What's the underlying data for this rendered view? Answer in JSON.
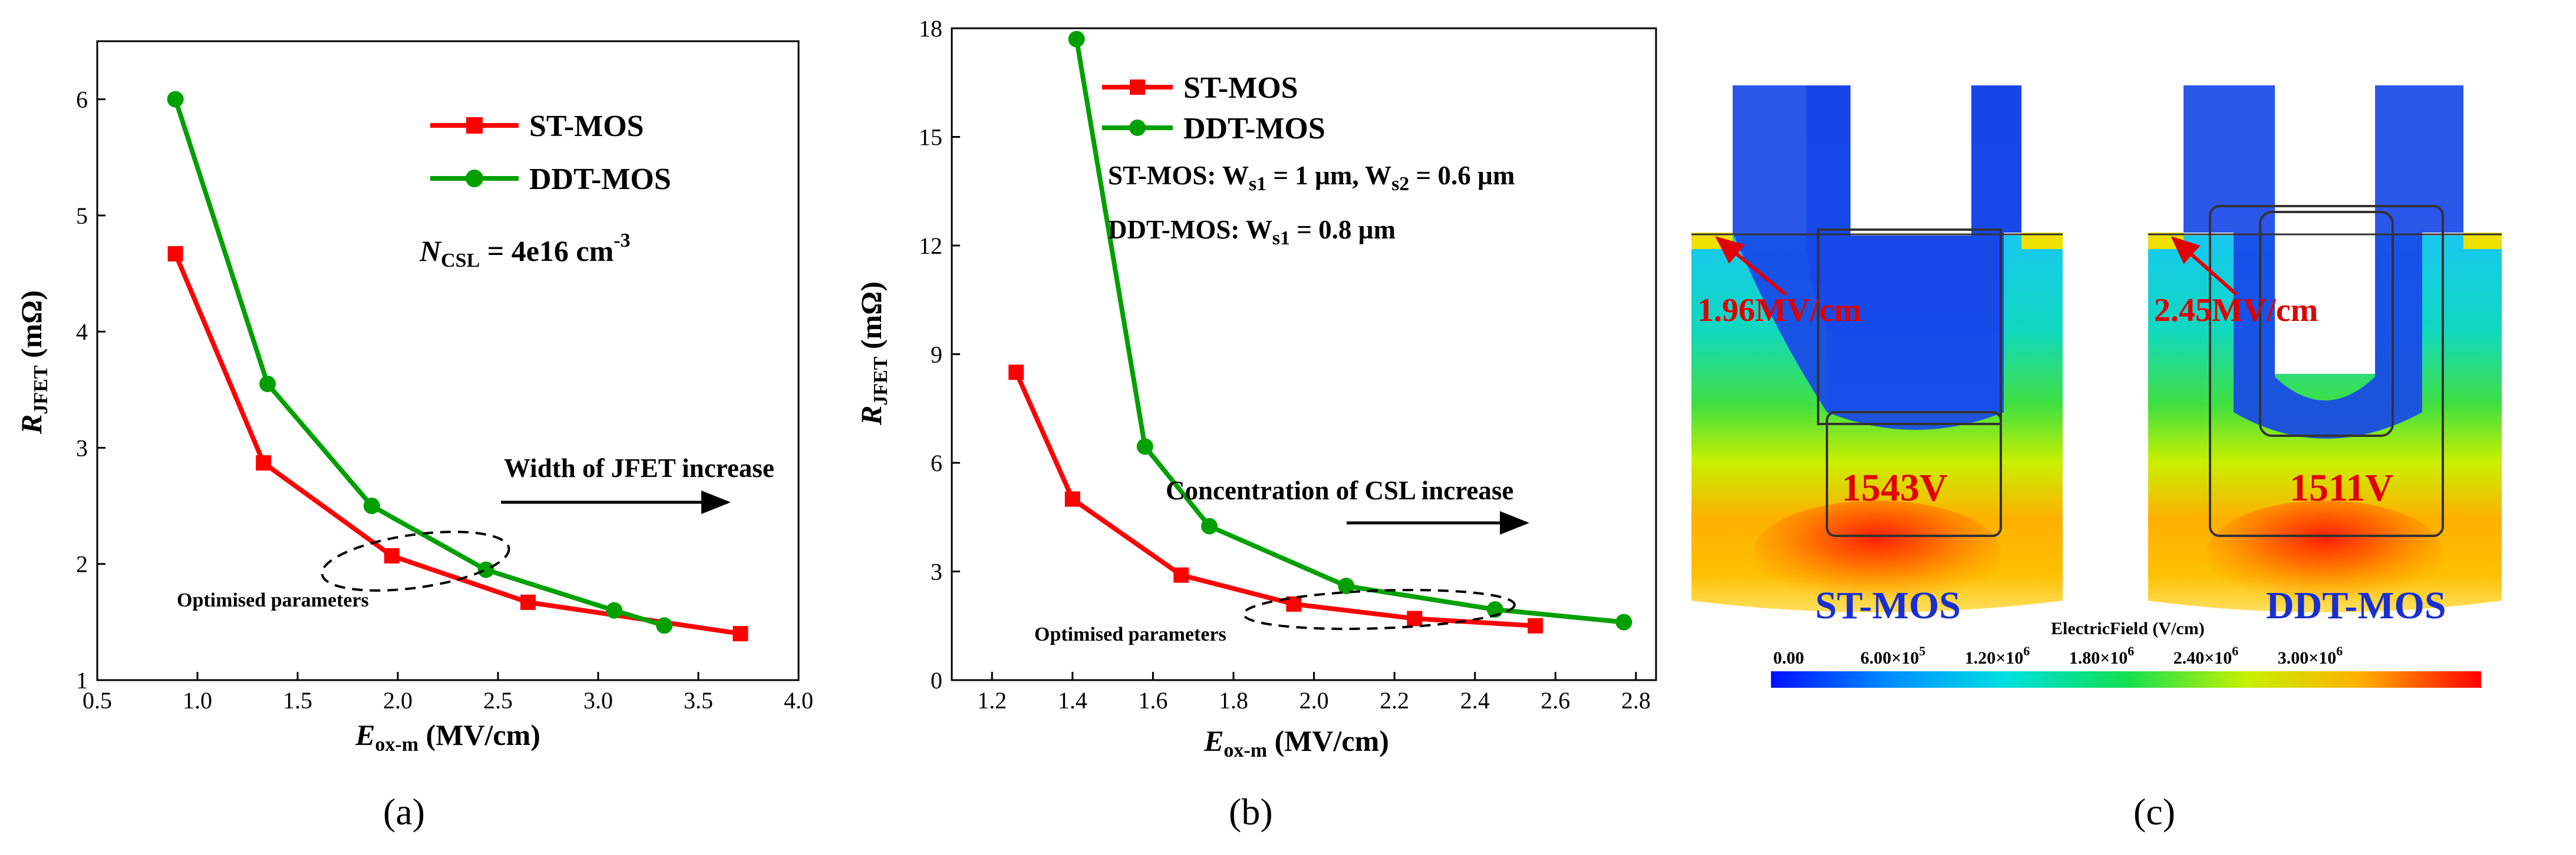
{
  "chart_data": [
    {
      "panel": "(a)",
      "type": "line",
      "xlabel": "E",
      "xlabel_sub": "ox-m",
      "xlabel_unit": " (MV/cm)",
      "ylabel": "R",
      "ylabel_sub": "JFET",
      "ylabel_unit": " (mΩ)",
      "xlim": [
        0.5,
        4.0
      ],
      "ylim": [
        1,
        6.5
      ],
      "xticks": [
        "0.5",
        "1.0",
        "1.5",
        "2.0",
        "2.5",
        "3.0",
        "3.5",
        "4.0"
      ],
      "yticks": [
        "1",
        "2",
        "3",
        "4",
        "5",
        "6"
      ],
      "series": [
        {
          "name": "ST-MOS",
          "color": "#ff0000",
          "marker": "square",
          "x": [
            0.89,
            1.33,
            1.97,
            2.65,
            3.71
          ],
          "y": [
            4.67,
            2.87,
            2.07,
            1.67,
            1.4
          ]
        },
        {
          "name": "DDT-MOS",
          "color": "#00a000",
          "marker": "circle",
          "x": [
            0.89,
            1.35,
            1.87,
            2.44,
            3.08,
            3.33
          ],
          "y": [
            6.0,
            3.55,
            2.5,
            1.95,
            1.6,
            1.47
          ]
        }
      ],
      "annotations": {
        "ncsl_main": "N",
        "ncsl_sub": "CSL",
        "ncsl_value": " = 4e16 cm",
        "ncsl_sup": "-3",
        "arrow_text": "Width of JFET increase",
        "optimised": "Optimised parameters"
      }
    },
    {
      "panel": "(b)",
      "type": "line",
      "xlabel": "E",
      "xlabel_sub": "ox-m",
      "xlabel_unit": " (MV/cm)",
      "ylabel": "R",
      "ylabel_sub": "JFET",
      "ylabel_unit": " (mΩ)",
      "xlim": [
        1.1,
        2.85
      ],
      "ylim": [
        0,
        18
      ],
      "xticks": [
        "1.2",
        "1.4",
        "1.6",
        "1.8",
        "2.0",
        "2.2",
        "2.4",
        "2.6",
        "2.8"
      ],
      "yticks": [
        "0",
        "3",
        "6",
        "9",
        "12",
        "15",
        "18"
      ],
      "series": [
        {
          "name": "ST-MOS",
          "color": "#ff0000",
          "marker": "square",
          "x": [
            1.26,
            1.4,
            1.67,
            1.95,
            2.25,
            2.55
          ],
          "y": [
            8.5,
            5.0,
            2.9,
            2.1,
            1.7,
            1.5
          ]
        },
        {
          "name": "DDT-MOS",
          "color": "#00a000",
          "marker": "circle",
          "x": [
            1.41,
            1.58,
            1.74,
            2.08,
            2.45,
            2.77
          ],
          "y": [
            17.7,
            6.45,
            4.25,
            2.6,
            1.95,
            1.6
          ]
        }
      ],
      "annotations": {
        "st_params": "ST-MOS: W",
        "st_params_sub1": "s1",
        "st_params_mid": " = 1 µm, W",
        "st_params_sub2": "s2",
        "st_params_end": " = 0.6 µm",
        "ddt_params": "DDT-MOS: W",
        "ddt_params_sub": "s1",
        "ddt_params_end": " = 0.8 µm",
        "arrow_text": "Concentration of CSL increase",
        "optimised": "Optimised parameters"
      }
    }
  ],
  "panel_c": {
    "label": "(c)",
    "left_field": "1.96MV/cm",
    "right_field": "2.45MV/cm",
    "left_voltage": "1543V",
    "right_voltage": "1511V",
    "left_device": "ST-MOS",
    "right_device": "DDT-MOS",
    "colorbar_title": "ElectricField (V/cm)",
    "colorbar_ticks": [
      {
        "m": "0.00",
        "e": ""
      },
      {
        "m": "6.00×10",
        "e": "5"
      },
      {
        "m": "1.20×10",
        "e": "6"
      },
      {
        "m": "1.80×10",
        "e": "6"
      },
      {
        "m": "2.40×10",
        "e": "6"
      },
      {
        "m": "3.00×10",
        "e": "6"
      }
    ]
  }
}
